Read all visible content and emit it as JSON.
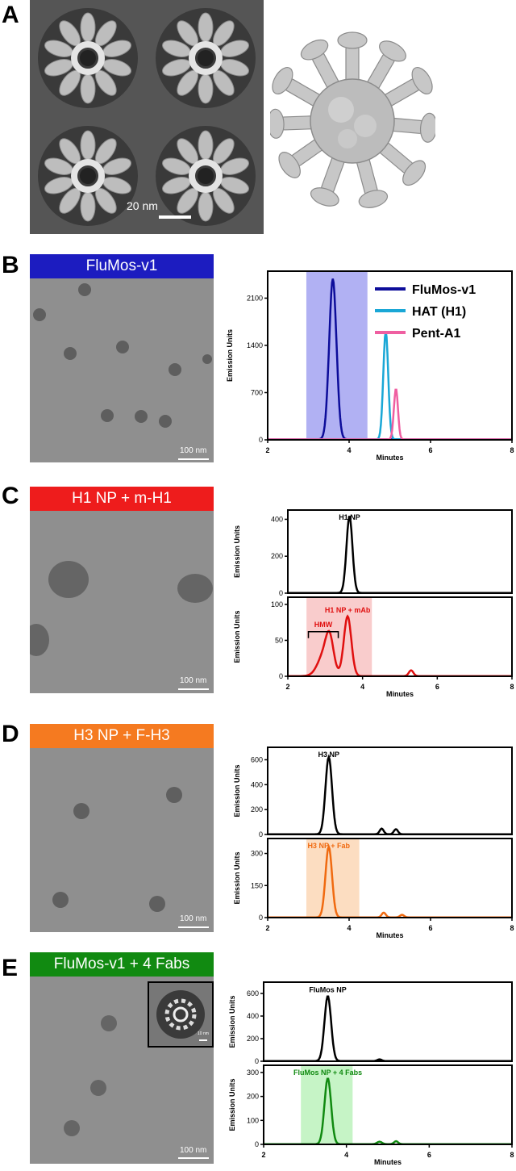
{
  "panels": {
    "A": {
      "label": "A",
      "scale": "20 nm"
    },
    "B": {
      "label": "B",
      "banner": "FluMos-v1",
      "banner_color": "#1c1cc0",
      "scale": "100 nm"
    },
    "C": {
      "label": "C",
      "banner": "H1 NP + m-H1",
      "banner_color": "#ee1c1c",
      "scale": "100 nm"
    },
    "D": {
      "label": "D",
      "banner": "H3 NP + F-H3",
      "banner_color": "#f57a20",
      "scale": "100 nm"
    },
    "E": {
      "label": "E",
      "banner": "FluMos-v1 + 4 Fabs",
      "banner_color": "#118a11",
      "scale": "100 nm",
      "inset_scale": "10 nm"
    }
  },
  "chart_data": [
    {
      "type": "line",
      "panel": "B",
      "xlabel": "Minutes",
      "ylabel": "Emission Units",
      "xlim": [
        2,
        8
      ],
      "ylim": [
        0,
        2500
      ],
      "xticks": [
        2,
        4,
        6,
        8
      ],
      "yticks": [
        0,
        700,
        1400,
        2100
      ],
      "highlight": {
        "x": [
          2.95,
          4.45
        ],
        "color": "#9090ee"
      },
      "legend_position": "top-right",
      "series": [
        {
          "name": "FluMos-v1",
          "color": "#0d0d9a",
          "peaks": [
            [
              3.6,
              2380,
              0.09
            ]
          ]
        },
        {
          "name": "HAT (H1)",
          "color": "#1aa7d6",
          "peaks": [
            [
              4.9,
              1600,
              0.06
            ]
          ]
        },
        {
          "name": "Pent-A1",
          "color": "#ef5fa1",
          "peaks": [
            [
              5.15,
              750,
              0.05
            ]
          ]
        }
      ]
    },
    {
      "type": "line",
      "panel": "C-top",
      "ylabel": "Emission Units",
      "title": "H1 NP",
      "xlim": [
        2,
        8
      ],
      "ylim": [
        0,
        450
      ],
      "yticks": [
        0,
        200,
        400
      ],
      "series": [
        {
          "color": "#000000",
          "peaks": [
            [
              3.65,
              415,
              0.08
            ]
          ]
        }
      ]
    },
    {
      "type": "line",
      "panel": "C-bottom",
      "xlabel": "Minutes",
      "ylabel": "Emission Units",
      "title": "H1 NP + mAb",
      "xlim": [
        2,
        8
      ],
      "ylim": [
        0,
        110
      ],
      "xticks": [
        2,
        4,
        6,
        8
      ],
      "yticks": [
        0,
        50,
        100
      ],
      "highlight": {
        "x": [
          2.5,
          4.25
        ],
        "color": "#f7b7b7"
      },
      "annotation": {
        "text": "HMW",
        "x": [
          2.55,
          3.35
        ],
        "y": 62,
        "color": "#e01010"
      },
      "series": [
        {
          "color": "#e01010",
          "peaks": [
            [
              3.0,
              33,
              0.18
            ],
            [
              3.12,
              35,
              0.1
            ],
            [
              3.6,
              83,
              0.1
            ],
            [
              5.3,
              8,
              0.06
            ]
          ]
        }
      ]
    },
    {
      "type": "line",
      "panel": "D-top",
      "ylabel": "Emission Units",
      "title": "H3 NP",
      "xlim": [
        2,
        8
      ],
      "ylim": [
        0,
        700
      ],
      "yticks": [
        0,
        200,
        400,
        600
      ],
      "series": [
        {
          "color": "#000000",
          "peaks": [
            [
              3.5,
              620,
              0.08
            ],
            [
              4.8,
              45,
              0.05
            ],
            [
              5.15,
              40,
              0.05
            ]
          ]
        }
      ]
    },
    {
      "type": "line",
      "panel": "D-bottom",
      "xlabel": "Minutes",
      "ylabel": "Emission Units",
      "title": "H3 NP + Fab",
      "xlim": [
        2,
        8
      ],
      "ylim": [
        0,
        370
      ],
      "xticks": [
        2,
        4,
        6,
        8
      ],
      "yticks": [
        0,
        150,
        300
      ],
      "highlight": {
        "x": [
          2.95,
          4.25
        ],
        "color": "#fbcfa6"
      },
      "series": [
        {
          "color": "#f06a10",
          "peaks": [
            [
              3.5,
              330,
              0.08
            ],
            [
              4.85,
              22,
              0.05
            ],
            [
              5.3,
              12,
              0.05
            ]
          ]
        }
      ]
    },
    {
      "type": "line",
      "panel": "E-top",
      "ylabel": "Emission Units",
      "title": "FluMos NP",
      "xlim": [
        2,
        8
      ],
      "ylim": [
        0,
        700
      ],
      "yticks": [
        0,
        200,
        400,
        600
      ],
      "series": [
        {
          "color": "#000000",
          "peaks": [
            [
              3.55,
              575,
              0.08
            ],
            [
              4.8,
              15,
              0.05
            ]
          ]
        }
      ]
    },
    {
      "type": "line",
      "panel": "E-bottom",
      "xlabel": "Minutes",
      "ylabel": "Emission Units",
      "title": "FluMos NP + 4 Fabs",
      "xlim": [
        2,
        8
      ],
      "ylim": [
        0,
        330
      ],
      "xticks": [
        2,
        4,
        6,
        8
      ],
      "yticks": [
        0,
        100,
        200,
        300
      ],
      "highlight": {
        "x": [
          2.9,
          4.15
        ],
        "color": "#aef0ae"
      },
      "series": [
        {
          "color": "#118a11",
          "peaks": [
            [
              3.55,
              275,
              0.08
            ],
            [
              4.8,
              10,
              0.06
            ],
            [
              5.2,
              12,
              0.05
            ]
          ]
        }
      ]
    }
  ]
}
